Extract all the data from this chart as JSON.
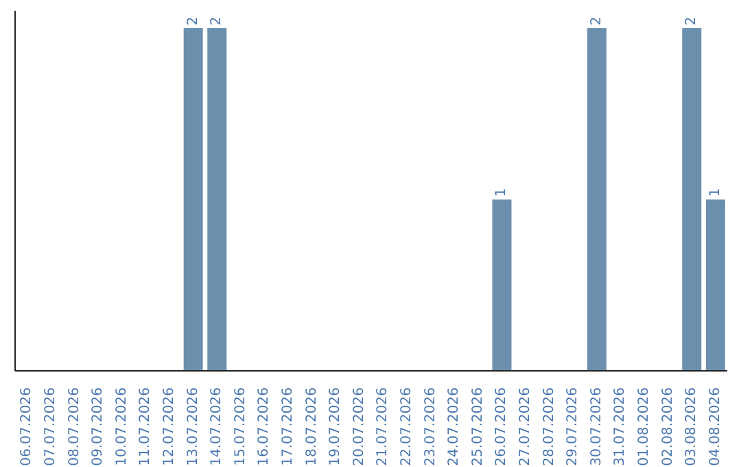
{
  "chart_data": {
    "type": "bar",
    "categories": [
      "06.07.2026",
      "07.07.2026",
      "08.07.2026",
      "09.07.2026",
      "10.07.2026",
      "11.07.2026",
      "12.07.2026",
      "13.07.2026",
      "14.07.2026",
      "15.07.2026",
      "16.07.2026",
      "17.07.2026",
      "18.07.2026",
      "19.07.2026",
      "20.07.2026",
      "21.07.2026",
      "22.07.2026",
      "23.07.2026",
      "24.07.2026",
      "25.07.2026",
      "26.07.2026",
      "27.07.2026",
      "28.07.2026",
      "29.07.2026",
      "30.07.2026",
      "31.07.2026",
      "01.08.2026",
      "02.08.2026",
      "03.08.2026",
      "04.08.2026"
    ],
    "values": [
      0,
      0,
      0,
      0,
      0,
      0,
      0,
      2,
      2,
      0,
      0,
      0,
      0,
      0,
      0,
      0,
      0,
      0,
      0,
      0,
      1,
      0,
      0,
      0,
      2,
      0,
      0,
      0,
      2,
      1
    ],
    "value_labels": [
      null,
      null,
      null,
      null,
      null,
      null,
      null,
      "2",
      "2",
      null,
      null,
      null,
      null,
      null,
      null,
      null,
      null,
      null,
      null,
      null,
      "1",
      null,
      null,
      null,
      "2",
      null,
      null,
      null,
      "2",
      "1"
    ],
    "color": "#6d8fae",
    "ylim": [
      0,
      2.1
    ],
    "tick_labels": "x"
  }
}
